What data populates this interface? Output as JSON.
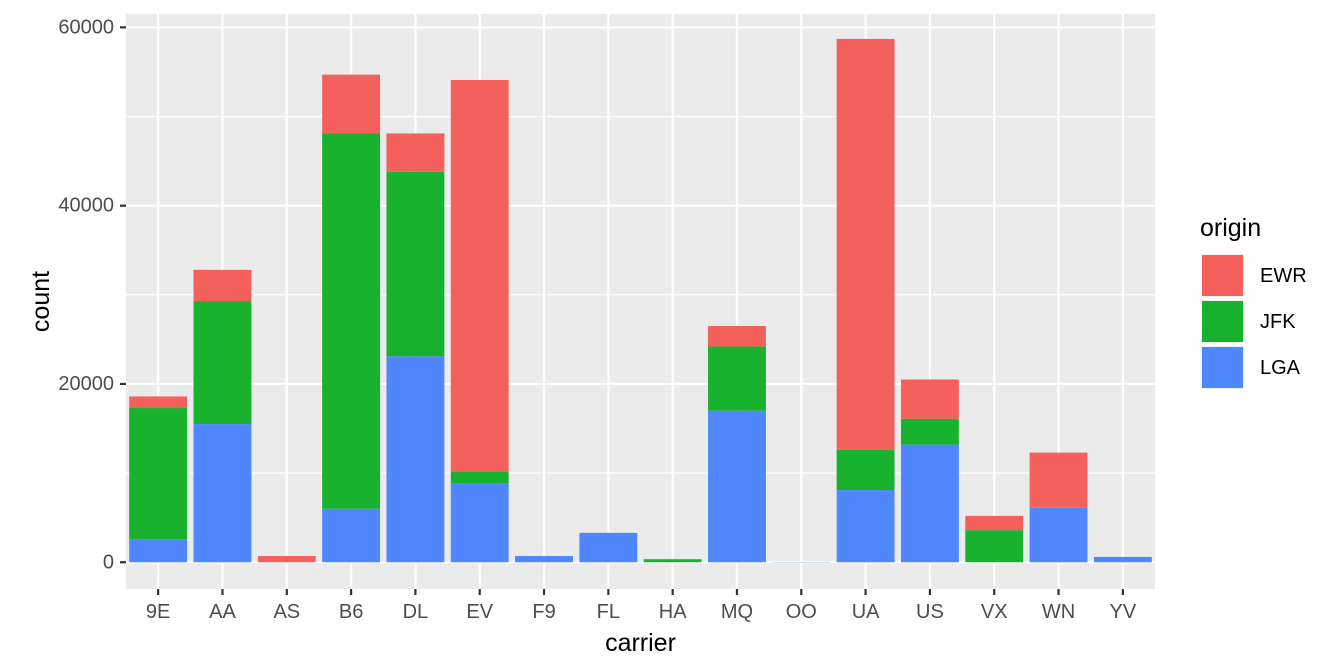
{
  "chart_data": {
    "type": "bar",
    "stacked": true,
    "xlabel": "carrier",
    "ylabel": "count",
    "ylim": [
      -3000,
      61500
    ],
    "yticks": [
      0,
      20000,
      40000,
      60000
    ],
    "ytick_labels": [
      "0",
      "20000",
      "40000",
      "60000"
    ],
    "categories": [
      "9E",
      "AA",
      "AS",
      "B6",
      "DL",
      "EV",
      "F9",
      "FL",
      "HA",
      "MQ",
      "OO",
      "UA",
      "US",
      "VX",
      "WN",
      "YV"
    ],
    "legend": {
      "title": "origin",
      "position": "right",
      "entries": [
        "EWR",
        "JFK",
        "LGA"
      ]
    },
    "series": [
      {
        "name": "LGA",
        "color": "#5087FF",
        "values": [
          2600,
          15500,
          0,
          6000,
          23100,
          8800,
          700,
          3300,
          0,
          17000,
          30,
          8100,
          13200,
          0,
          6100,
          600
        ]
      },
      {
        "name": "JFK",
        "color": "#19B22F",
        "values": [
          14700,
          13800,
          0,
          42100,
          20700,
          1400,
          0,
          0,
          340,
          7200,
          0,
          4500,
          2900,
          3600,
          0,
          0
        ]
      },
      {
        "name": "EWR",
        "color": "#F4605B",
        "values": [
          1300,
          3500,
          700,
          6600,
          4300,
          43900,
          0,
          0,
          0,
          2300,
          0,
          46100,
          4400,
          1600,
          6200,
          0
        ]
      }
    ],
    "panel_background": "#EBEBEB",
    "grid": true
  }
}
